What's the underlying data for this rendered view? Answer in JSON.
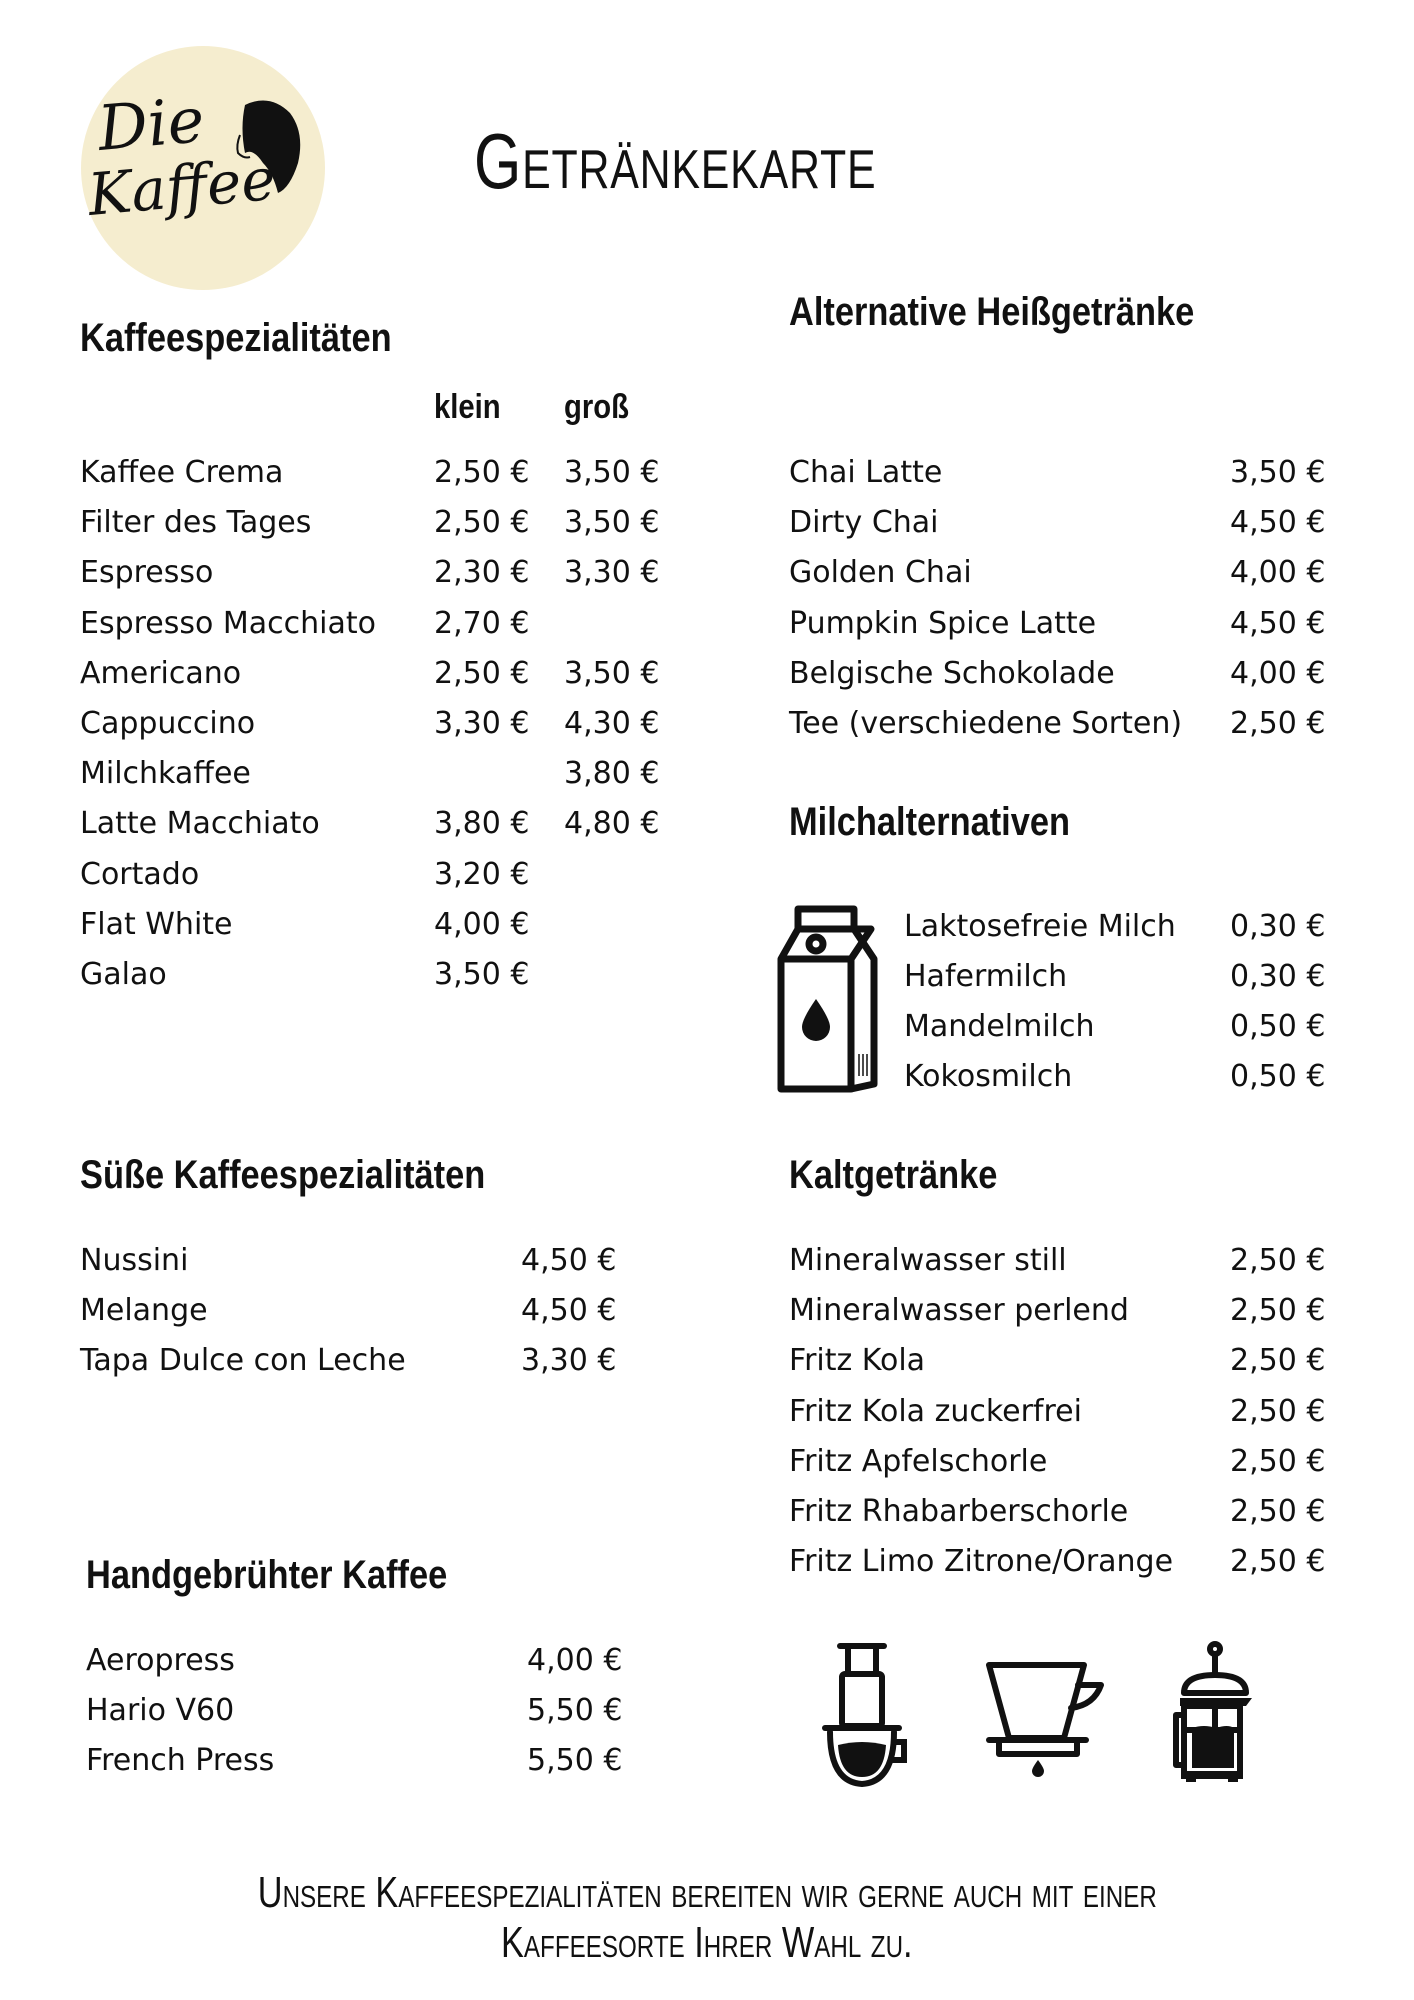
{
  "logo": {
    "text_line1": "Die",
    "text_line2": "Kaffee",
    "background": "#f5edcf"
  },
  "title": "Getränkekarte",
  "kaffee": {
    "heading": "Kaffeespezialitäten",
    "col_small": "klein",
    "col_large": "groß",
    "items": [
      {
        "name": "Kaffee Crema",
        "small": "2,50 €",
        "large": "3,50 €"
      },
      {
        "name": "Filter des Tages",
        "small": "2,50 €",
        "large": "3,50 €"
      },
      {
        "name": "Espresso",
        "small": "2,30 €",
        "large": "3,30 €"
      },
      {
        "name": "Espresso Macchiato",
        "small": "2,70 €",
        "large": ""
      },
      {
        "name": "Americano",
        "small": "2,50 €",
        "large": "3,50 €"
      },
      {
        "name": "Cappuccino",
        "small": "3,30 €",
        "large": "4,30 €"
      },
      {
        "name": "Milchkaffee",
        "small": "",
        "large": "3,80 €"
      },
      {
        "name": "Latte Macchiato",
        "small": "3,80 €",
        "large": "4,80 €"
      },
      {
        "name": "Cortado",
        "small": "3,20 €",
        "large": ""
      },
      {
        "name": "Flat White",
        "small": "4,00 €",
        "large": ""
      },
      {
        "name": "Galao",
        "small": "3,50 €",
        "large": ""
      }
    ]
  },
  "alternative": {
    "heading": "Alternative Heißgetränke",
    "items": [
      {
        "name": "Chai Latte",
        "price": "3,50 €"
      },
      {
        "name": "Dirty Chai",
        "price": "4,50 €"
      },
      {
        "name": "Golden Chai",
        "price": "4,00 €"
      },
      {
        "name": "Pumpkin Spice Latte",
        "price": "4,50 €"
      },
      {
        "name": "Belgische Schokolade",
        "price": "4,00 €"
      },
      {
        "name": "Tee (verschiedene Sorten)",
        "price": "2,50 €"
      }
    ]
  },
  "milch": {
    "heading": "Milchalternativen",
    "icon": "milk-carton-icon",
    "items": [
      {
        "name": "Laktosefreie Milch",
        "price": "0,30 €"
      },
      {
        "name": "Hafermilch",
        "price": "0,30 €"
      },
      {
        "name": "Mandelmilch",
        "price": "0,50 €"
      },
      {
        "name": "Kokosmilch",
        "price": "0,50 €"
      }
    ]
  },
  "suess": {
    "heading": "Süße Kaffeespezialitäten",
    "items": [
      {
        "name": "Nussini",
        "price": "4,50 €"
      },
      {
        "name": "Melange",
        "price": "4,50 €"
      },
      {
        "name": "Tapa Dulce con Leche",
        "price": "3,30 €"
      }
    ]
  },
  "kalt": {
    "heading": "Kaltgetränke",
    "items": [
      {
        "name": "Mineralwasser still",
        "price": "2,50 €"
      },
      {
        "name": "Mineralwasser perlend",
        "price": "2,50 €"
      },
      {
        "name": "Fritz Kola",
        "price": "2,50 €"
      },
      {
        "name": "Fritz Kola zuckerfrei",
        "price": "2,50 €"
      },
      {
        "name": "Fritz Apfelschorle",
        "price": "2,50 €"
      },
      {
        "name": "Fritz Rhabarberschorle",
        "price": "2,50 €"
      },
      {
        "name": "Fritz Limo Zitrone/Orange",
        "price": "2,50 €"
      }
    ]
  },
  "hand": {
    "heading": "Handgebrühter Kaffee",
    "items": [
      {
        "name": "Aeropress",
        "price": "4,00 €"
      },
      {
        "name": "Hario V60",
        "price": "5,50 €"
      },
      {
        "name": "French Press",
        "price": "5,50 €"
      }
    ],
    "icons": [
      "aeropress-icon",
      "pour-over-dripper-icon",
      "french-press-icon"
    ]
  },
  "footer": {
    "line1": "Unsere Kaffeespezialitäten bereiten wir gerne auch mit einer",
    "line2": "Kaffeesorte Ihrer Wahl zu."
  }
}
